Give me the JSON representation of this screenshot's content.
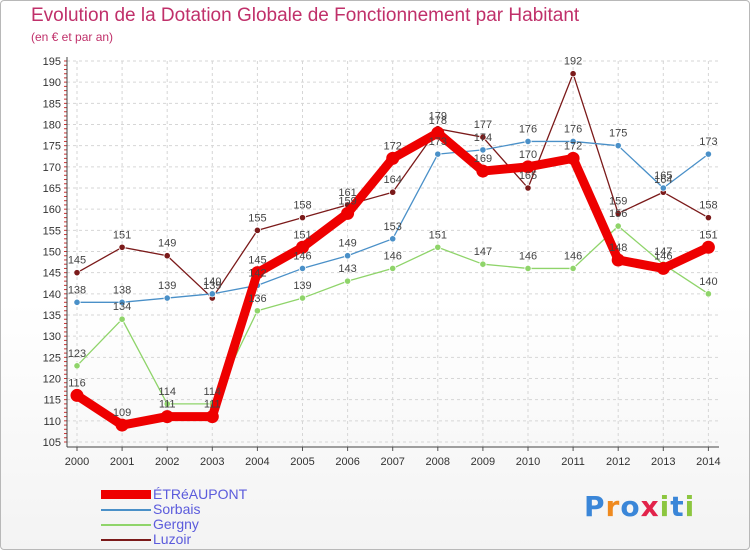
{
  "title": "Evolution de la Dotation Globale de Fonctionnement par Habitant",
  "subtitle": "(en € et par an)",
  "logo": {
    "letters": [
      "P",
      "r",
      "o",
      "x",
      "i",
      "t",
      "i"
    ],
    "colors": [
      "#3a86d8",
      "#ef8a1f",
      "#3a86d8",
      "#e2234a",
      "#8cc63f",
      "#3a86d8",
      "#8cc63f"
    ]
  },
  "chart_data": {
    "type": "line",
    "title": "Evolution de la Dotation Globale de Fonctionnement par Habitant",
    "subtitle": "(en € et par an)",
    "x": [
      "2000",
      "2001",
      "2002",
      "2003",
      "2004",
      "2005",
      "2006",
      "2007",
      "2008",
      "2009",
      "2010",
      "2011",
      "2012",
      "2013",
      "2014"
    ],
    "ylim": [
      105,
      195
    ],
    "yticks": [
      105,
      110,
      115,
      120,
      125,
      130,
      135,
      140,
      145,
      150,
      155,
      160,
      165,
      170,
      175,
      180,
      185,
      190,
      195
    ],
    "grid": true,
    "legend_position": "bottom-left",
    "series": [
      {
        "name": "ÉTRéAUPONT",
        "color": "#ee0000",
        "width": 9,
        "values": [
          116,
          109,
          111,
          111,
          145,
          151,
          159,
          172,
          178,
          169,
          170,
          172,
          148,
          146,
          151
        ],
        "labels": [
          "116",
          "109",
          "111",
          "111",
          "145",
          "151",
          "159",
          "172",
          "178",
          "169",
          "170",
          "172",
          "148",
          "146",
          "151"
        ]
      },
      {
        "name": "Sorbais",
        "color": "#4a90c8",
        "width": 1.3,
        "values": [
          138,
          138,
          139,
          140,
          142,
          146,
          149,
          153,
          173,
          174,
          176,
          176,
          175,
          165,
          173
        ],
        "labels": [
          "138",
          "138",
          "139",
          "140",
          "142",
          "146",
          "149",
          "153",
          "173",
          "174",
          "176",
          "176",
          "175",
          "165",
          "173"
        ]
      },
      {
        "name": "Gergny",
        "color": "#8fd46a",
        "width": 1.3,
        "values": [
          123,
          134,
          114,
          114,
          136,
          139,
          143,
          146,
          151,
          147,
          146,
          146,
          156,
          147,
          140
        ],
        "labels": [
          "123",
          "134",
          "114",
          "114",
          "136",
          "139",
          "143",
          "146",
          "151",
          "147",
          "146",
          "146",
          "156",
          "147",
          "140"
        ]
      },
      {
        "name": "Luzoir",
        "color": "#7b1a1a",
        "width": 1.3,
        "values": [
          145,
          151,
          149,
          139,
          155,
          158,
          161,
          164,
          179,
          177,
          165,
          192,
          159,
          164,
          158
        ],
        "labels": [
          "145",
          "151",
          "149",
          "139",
          "155",
          "158",
          "161",
          "164",
          "179",
          "177",
          "165",
          "192",
          "159",
          "164",
          "158"
        ]
      }
    ]
  }
}
